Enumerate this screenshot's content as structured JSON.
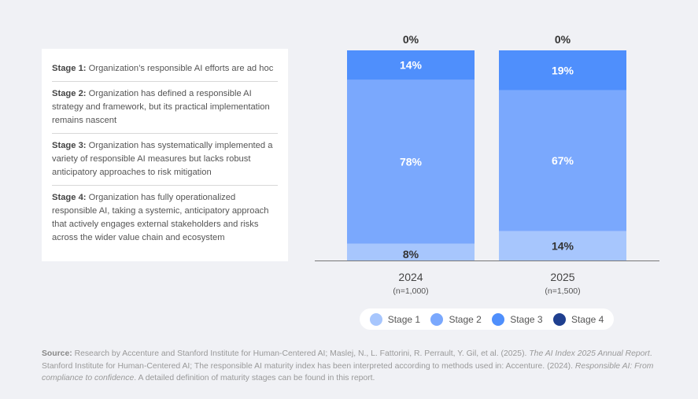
{
  "stages": [
    {
      "label": "Stage 1:",
      "text": "Organization’s responsible AI efforts are ad hoc"
    },
    {
      "label": "Stage 2:",
      "text": "Organization has defined a responsible AI strategy and framework, but its practical implementation remains nascent"
    },
    {
      "label": "Stage 3:",
      "text": "Organization has systematically implemented a variety of responsible AI measures but lacks robust anticipatory approaches to risk mitigation"
    },
    {
      "label": "Stage 4:",
      "text": "Organization has fully operationalized responsible AI, taking a systemic, anticipatory approach that actively engages external stakeholders and risks across the wider value chain and ecosystem"
    }
  ],
  "chart_data": {
    "type": "bar",
    "stacked": true,
    "categories": [
      "2024",
      "2025"
    ],
    "category_sublabels": [
      "(n=1,000)",
      "(n=1,500)"
    ],
    "series": [
      {
        "name": "Stage 1",
        "values": [
          8,
          14
        ],
        "color": "#a7c6fd"
      },
      {
        "name": "Stage 2",
        "values": [
          78,
          67
        ],
        "color": "#7aa8fd"
      },
      {
        "name": "Stage 3",
        "values": [
          14,
          19
        ],
        "color": "#4f8ffc"
      },
      {
        "name": "Stage 4",
        "values": [
          0,
          0
        ],
        "color": "#1f3f8f"
      }
    ],
    "ylim": [
      0,
      100
    ],
    "unit": "%",
    "grid": false,
    "legend_position": "bottom"
  },
  "source": {
    "label": "Source:",
    "part1": " Research by Accenture and Stanford Institute for Human-Centered AI; Maslej, N., L. Fattorini, R. Perrault, Y. Gil, et al. (2025). ",
    "italic1": "The AI Index 2025 Annual Report",
    "part2": ". Stanford Institute for Human-Centered AI; The responsible AI maturity index has been interpreted according to methods used in: Accenture. (2024). ",
    "italic2": "Responsible AI: From compliance to confidence",
    "part3": ". A detailed definition of maturity stages can be found in this report."
  }
}
